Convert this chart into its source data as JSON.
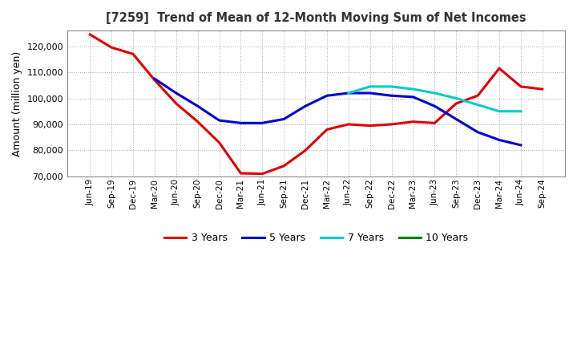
{
  "title": "[7259]  Trend of Mean of 12-Month Moving Sum of Net Incomes",
  "ylabel": "Amount (million yen)",
  "ylim": [
    70000,
    126000
  ],
  "yticks": [
    70000,
    80000,
    90000,
    100000,
    110000,
    120000
  ],
  "background_color": "#ffffff",
  "grid_color": "#aaaaaa",
  "x_labels": [
    "Jun-19",
    "Sep-19",
    "Dec-19",
    "Mar-20",
    "Jun-20",
    "Sep-20",
    "Dec-20",
    "Mar-21",
    "Jun-21",
    "Sep-21",
    "Dec-21",
    "Mar-22",
    "Jun-22",
    "Sep-22",
    "Dec-22",
    "Mar-23",
    "Jun-23",
    "Sep-23",
    "Dec-23",
    "Mar-24",
    "Jun-24",
    "Sep-24"
  ],
  "series": {
    "3 Years": {
      "color": "#dd0000",
      "linewidth": 2.2,
      "values": [
        124500,
        119500,
        117000,
        107000,
        98000,
        91000,
        83000,
        71200,
        71000,
        74000,
        80000,
        88000,
        90000,
        89500,
        90000,
        91000,
        90500,
        98000,
        101000,
        111500,
        104500,
        103500
      ]
    },
    "5 Years": {
      "color": "#0000cc",
      "linewidth": 2.2,
      "values": [
        null,
        null,
        null,
        107500,
        102000,
        97000,
        91500,
        90500,
        90500,
        92000,
        97000,
        101000,
        102000,
        102000,
        101000,
        100500,
        97000,
        92000,
        87000,
        84000,
        82000,
        null
      ]
    },
    "7 Years": {
      "color": "#00cccc",
      "linewidth": 2.2,
      "values": [
        null,
        null,
        null,
        null,
        null,
        null,
        null,
        null,
        null,
        null,
        null,
        null,
        102000,
        104500,
        104500,
        103500,
        102000,
        100000,
        97500,
        95000,
        95000,
        null
      ]
    },
    "10 Years": {
      "color": "#008000",
      "linewidth": 2.2,
      "values": [
        null,
        null,
        null,
        null,
        null,
        null,
        null,
        null,
        null,
        null,
        null,
        null,
        null,
        null,
        null,
        null,
        null,
        null,
        null,
        null,
        null,
        null
      ]
    }
  },
  "legend_order": [
    "3 Years",
    "5 Years",
    "7 Years",
    "10 Years"
  ]
}
